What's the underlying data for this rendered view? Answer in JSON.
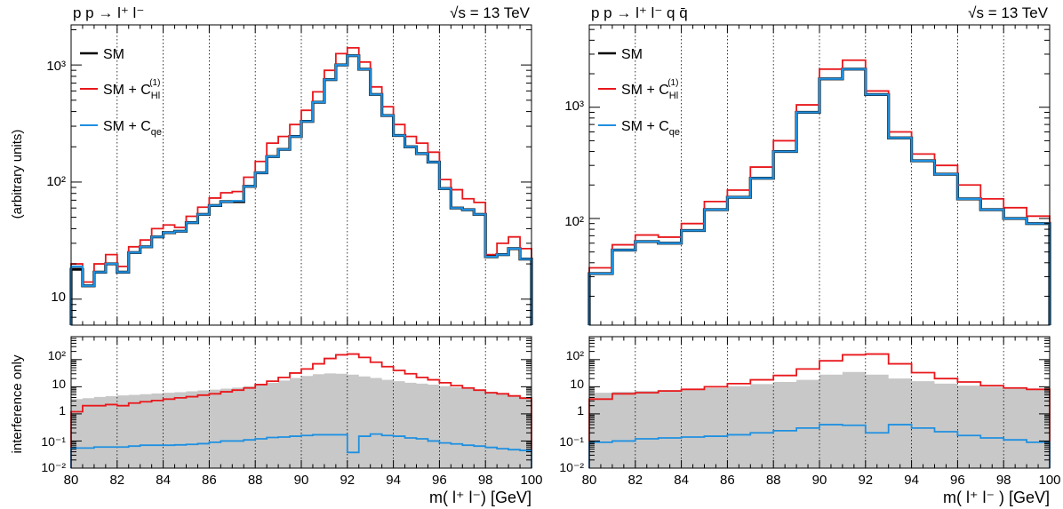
{
  "chart_data": [
    {
      "type": "line",
      "panel": "left-main",
      "process_label": "p p → l⁺ l⁻",
      "energy_label": "√s = 13 TeV",
      "ylabel": "(arbitrary units)",
      "xlim": [
        80,
        100
      ],
      "ylim": [
        6,
        2200
      ],
      "log_y": true,
      "grid_x": "dotted vertical every 2 GeV",
      "legend_position": "top-left",
      "bin_edges": [
        80,
        80.5,
        81,
        81.5,
        82,
        82.5,
        83,
        83.5,
        84,
        84.5,
        85,
        85.5,
        86,
        86.5,
        87,
        87.5,
        88,
        88.5,
        89,
        89.5,
        90,
        90.5,
        91,
        91.5,
        92,
        92.5,
        93,
        93.5,
        94,
        94.5,
        95,
        95.5,
        96,
        96.5,
        97,
        97.5,
        98,
        98.5,
        99,
        99.5,
        100
      ],
      "y_tick_labels": [
        "10",
        "10²",
        "10³"
      ],
      "series": [
        {
          "name": "SM",
          "color": "#000000",
          "values": [
            18,
            13,
            17,
            20,
            17,
            25,
            28,
            34,
            37,
            38,
            45,
            53,
            63,
            68,
            68,
            92,
            120,
            165,
            190,
            245,
            330,
            480,
            750,
            1000,
            1200,
            920,
            560,
            370,
            250,
            200,
            175,
            148,
            88,
            60,
            58,
            53,
            23,
            24,
            27,
            22
          ]
        },
        {
          "name": "SM + C_Hl^(1)",
          "color": "#e8181c",
          "values": [
            20,
            14,
            20,
            24,
            19,
            28,
            32,
            40,
            43,
            41,
            51,
            61,
            73,
            81,
            83,
            110,
            150,
            215,
            245,
            310,
            410,
            590,
            900,
            1250,
            1400,
            1060,
            650,
            440,
            310,
            245,
            215,
            180,
            105,
            86,
            72,
            67,
            24,
            30,
            34,
            27
          ]
        },
        {
          "name": "SM + C_qe",
          "color": "#1f90e0",
          "values": [
            19,
            13,
            17,
            20,
            17,
            25,
            28,
            34,
            37,
            38,
            45,
            53,
            63,
            68,
            69,
            92,
            120,
            165,
            190,
            245,
            330,
            480,
            750,
            1000,
            1200,
            920,
            560,
            370,
            250,
            200,
            175,
            148,
            88,
            60,
            58,
            53,
            23,
            24,
            27,
            22
          ]
        }
      ]
    },
    {
      "type": "area",
      "panel": "left-ratio",
      "ylabel": "interference only",
      "xlabel": "m( l⁺ l⁻) [GeV]",
      "xlim": [
        80,
        100
      ],
      "ylim": [
        0.01,
        700
      ],
      "log_y": true,
      "x_ticks": [
        80,
        82,
        84,
        86,
        88,
        90,
        92,
        94,
        96,
        98,
        100
      ],
      "y_tick_labels": [
        "10⁻²",
        "10⁻¹",
        "1",
        "10",
        "10²"
      ],
      "bin_edges": [
        80,
        80.5,
        81,
        81.5,
        82,
        82.5,
        83,
        83.5,
        84,
        84.5,
        85,
        85.5,
        86,
        86.5,
        87,
        87.5,
        88,
        88.5,
        89,
        89.5,
        90,
        90.5,
        91,
        91.5,
        92,
        92.5,
        93,
        93.5,
        94,
        94.5,
        95,
        95.5,
        96,
        96.5,
        97,
        97.5,
        98,
        98.5,
        99,
        99.5,
        100
      ],
      "series": [
        {
          "name": "SM band",
          "color": "#c8c8c8",
          "values": [
            3.5,
            3.8,
            4.2,
            4.5,
            4.8,
            5.0,
            5.3,
            5.6,
            6.0,
            6.3,
            6.8,
            7.3,
            7.8,
            8.5,
            9.3,
            10.5,
            12,
            14,
            17,
            21,
            25,
            29,
            31,
            30,
            28,
            24,
            21,
            18,
            16,
            14,
            13,
            12,
            10.5,
            9.5,
            8.5,
            7.5,
            6.5,
            5.5,
            4.8,
            4.2
          ]
        },
        {
          "name": "SM + C_Hl^(1)",
          "color": "#e8181c",
          "values": [
            1.2,
            2.0,
            2.0,
            2.2,
            2.0,
            2.5,
            2.8,
            3.1,
            3.5,
            3.9,
            4.3,
            4.9,
            5.5,
            6.5,
            7.5,
            9.0,
            12,
            16,
            22,
            32,
            45,
            70,
            110,
            150,
            160,
            120,
            80,
            55,
            40,
            30,
            22,
            18,
            14,
            11,
            9,
            7.5,
            6,
            5.5,
            4.6,
            3.8
          ]
        },
        {
          "name": "SM + C_qe",
          "color": "#1f90e0",
          "values": [
            0.055,
            0.055,
            0.06,
            0.06,
            0.06,
            0.065,
            0.07,
            0.07,
            0.07,
            0.072,
            0.075,
            0.08,
            0.09,
            0.1,
            0.1,
            0.11,
            0.12,
            0.135,
            0.14,
            0.15,
            0.16,
            0.17,
            0.17,
            0.17,
            0.038,
            0.15,
            0.18,
            0.16,
            0.15,
            0.13,
            0.12,
            0.1,
            0.085,
            0.078,
            0.07,
            0.065,
            0.058,
            0.052,
            0.048,
            0.045
          ]
        }
      ]
    },
    {
      "type": "line",
      "panel": "right-main",
      "process_label": "p p → l⁺ l⁻ q q̄",
      "energy_label": "√s = 13 TeV",
      "xlim": [
        80,
        100
      ],
      "ylim": [
        11,
        5500
      ],
      "log_y": true,
      "grid_x": "dotted vertical every 2 GeV",
      "legend_position": "top-left",
      "bin_edges": [
        80,
        81,
        82,
        83,
        84,
        85,
        86,
        87,
        88,
        89,
        90,
        91,
        92,
        93,
        94,
        95,
        96,
        97,
        98,
        99,
        100
      ],
      "y_tick_labels": [
        "10²",
        "10³"
      ],
      "series": [
        {
          "name": "SM",
          "color": "#000000",
          "values": [
            32,
            52,
            62,
            60,
            78,
            120,
            155,
            230,
            400,
            900,
            1800,
            2200,
            1300,
            530,
            330,
            250,
            150,
            120,
            100,
            90
          ]
        },
        {
          "name": "SM + C_Hl^(1)",
          "color": "#e8181c",
          "values": [
            36,
            58,
            71,
            68,
            90,
            142,
            180,
            290,
            500,
            1050,
            2200,
            2650,
            1400,
            600,
            380,
            300,
            200,
            150,
            125,
            105
          ]
        },
        {
          "name": "SM + C_qe",
          "color": "#1f90e0",
          "values": [
            32,
            52,
            62,
            60,
            78,
            120,
            155,
            230,
            400,
            900,
            1800,
            2200,
            1300,
            530,
            330,
            250,
            150,
            120,
            100,
            90
          ]
        }
      ]
    },
    {
      "type": "area",
      "panel": "right-ratio",
      "xlabel": "m( l⁺ l⁻ ) [GeV]",
      "xlim": [
        80,
        100
      ],
      "ylim": [
        0.01,
        700
      ],
      "log_y": true,
      "x_ticks": [
        80,
        82,
        84,
        86,
        88,
        90,
        92,
        94,
        96,
        98,
        100
      ],
      "y_tick_labels": [
        "10⁻²",
        "10⁻¹",
        "1",
        "10",
        "10²"
      ],
      "bin_edges": [
        80,
        81,
        82,
        83,
        84,
        85,
        86,
        87,
        88,
        89,
        90,
        91,
        92,
        93,
        94,
        95,
        96,
        97,
        98,
        99,
        100
      ],
      "series": [
        {
          "name": "SM band",
          "color": "#c8c8c8",
          "values": [
            6,
            6.5,
            7,
            7.5,
            8,
            9,
            10.5,
            12.5,
            15,
            18,
            28,
            35,
            28,
            20,
            16,
            13,
            11,
            10,
            9,
            8.5
          ]
        },
        {
          "name": "SM + C_Hl^(1)",
          "color": "#e8181c",
          "values": [
            3.5,
            5.5,
            6,
            7,
            8,
            10,
            13,
            18,
            26,
            45,
            90,
            150,
            160,
            70,
            33,
            20,
            15,
            11,
            9,
            8
          ]
        },
        {
          "name": "SM + C_qe",
          "color": "#1f90e0",
          "values": [
            0.09,
            0.1,
            0.12,
            0.13,
            0.14,
            0.15,
            0.17,
            0.2,
            0.24,
            0.3,
            0.4,
            0.38,
            0.2,
            0.4,
            0.3,
            0.22,
            0.16,
            0.13,
            0.11,
            0.09
          ]
        }
      ]
    }
  ]
}
